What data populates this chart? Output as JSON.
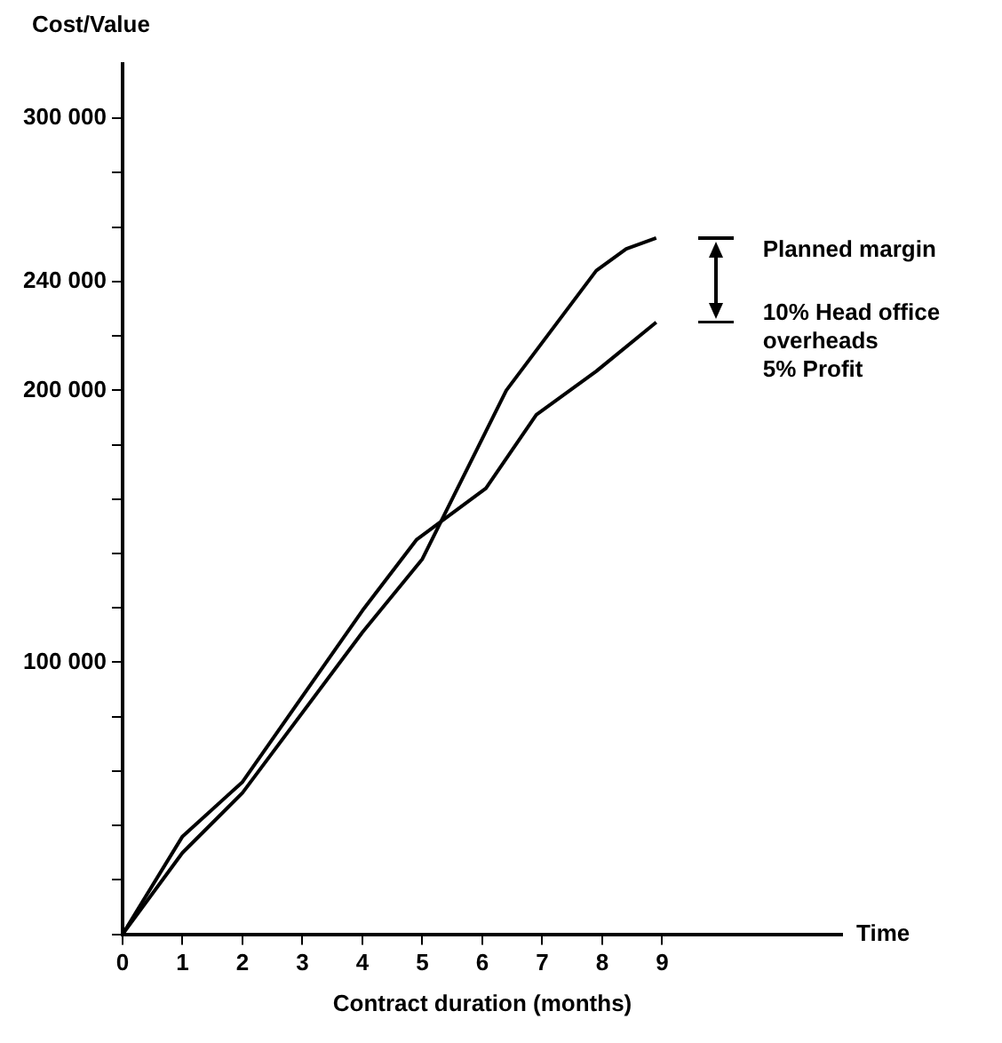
{
  "chart_data": {
    "type": "line",
    "xlabel": "Contract duration (months)",
    "ylabel": "Cost/Value",
    "xlim": [
      0,
      12
    ],
    "xticks": [
      0,
      1,
      2,
      3,
      4,
      5,
      6,
      7,
      8,
      9
    ],
    "ylim": [
      0,
      320000
    ],
    "yticks": [
      {
        "value": 0,
        "label": null
      },
      {
        "value": 20000,
        "label": null
      },
      {
        "value": 40000,
        "label": null
      },
      {
        "value": 60000,
        "label": null
      },
      {
        "value": 80000,
        "label": null
      },
      {
        "value": 100000,
        "label": "100 000"
      },
      {
        "value": 120000,
        "label": null
      },
      {
        "value": 140000,
        "label": null
      },
      {
        "value": 160000,
        "label": null
      },
      {
        "value": 180000,
        "label": null
      },
      {
        "value": 200000,
        "label": "200 000"
      },
      {
        "value": 220000,
        "label": null
      },
      {
        "value": 240000,
        "label": "240 000"
      },
      {
        "value": 260000,
        "label": null
      },
      {
        "value": 280000,
        "label": null
      },
      {
        "value": 300000,
        "label": "300 000"
      }
    ],
    "grid": false,
    "legend": false,
    "marker": "none",
    "line_style": "solid",
    "series": [
      {
        "color": "#000000",
        "x": [
          0,
          1,
          2,
          4,
          4.9,
          6.06,
          6.9,
          7.9,
          8.9
        ],
        "values": [
          0,
          36000,
          56000,
          119000,
          145000,
          164000,
          191000,
          207000,
          225000
        ]
      },
      {
        "color": "#000000",
        "x": [
          0,
          1,
          2,
          4,
          5,
          6.4,
          7.9,
          8.4,
          8.9
        ],
        "values": [
          0,
          30000,
          52000,
          111000,
          138000,
          200000,
          244000,
          252000,
          256000
        ]
      }
    ],
    "annotations": [
      "Time",
      "Planned margin",
      "10% Head office\noverheads\n5% Profit"
    ]
  }
}
